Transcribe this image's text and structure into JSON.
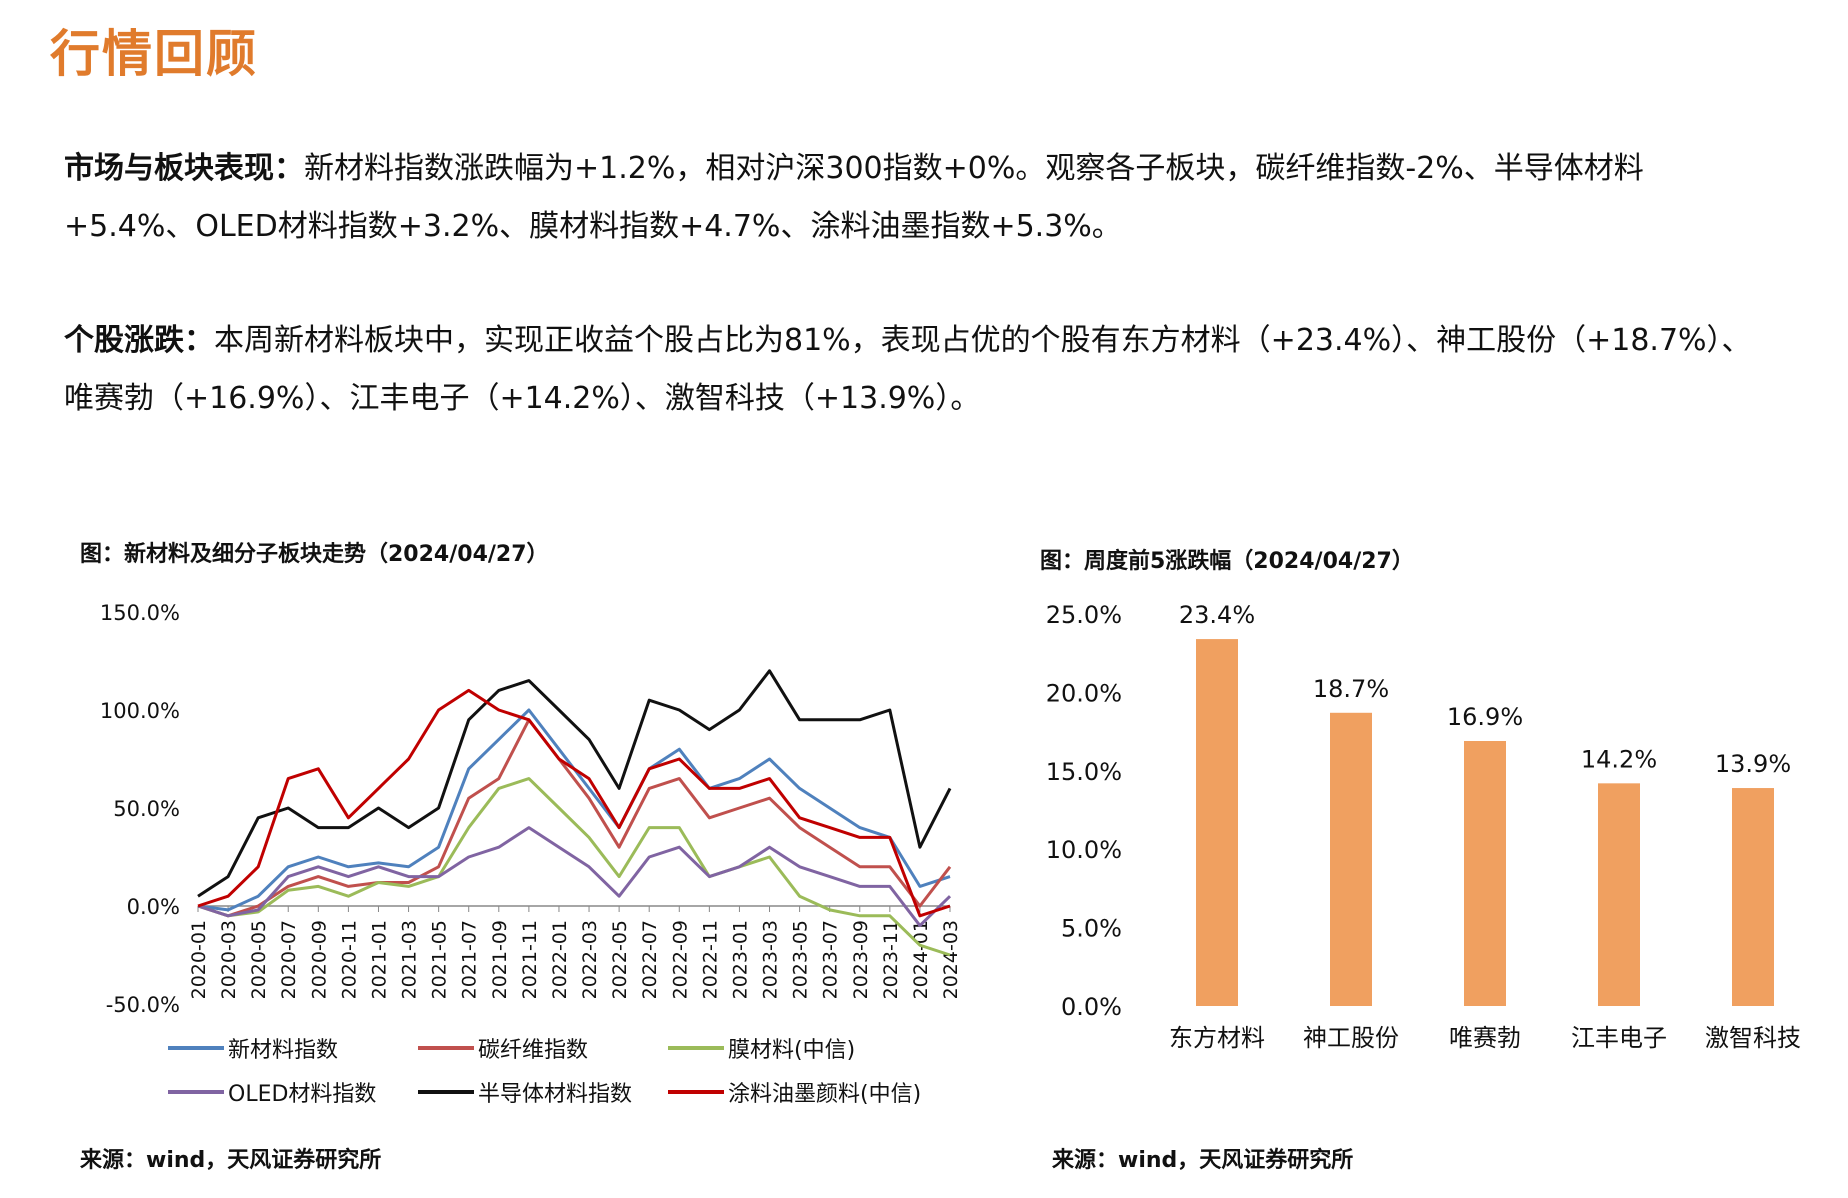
{
  "header": {
    "title": "行情回顾"
  },
  "paragraphs": {
    "p1_lead": "市场与板块表现：",
    "p1_text": "新材料指数涨跌幅为+1.2%，相对沪深300指数+0%。观察各子板块，碳纤维指数-2%、半导体材料+5.4%、OLED材料指数+3.2%、膜材料指数+4.7%、涂料油墨指数+5.3%。",
    "p2_lead": "个股涨跌：",
    "p2_text": "本周新材料板块中，实现正收益个股占比为81%，表现占优的个股有东方材料（+23.4%）、神工股份（+18.7%）、唯赛勃（+16.9%）、江丰电子（+14.2%）、激智科技（+13.9%）。"
  },
  "captions": {
    "line_chart": "图：新材料及细分子板块走势（2024/04/27）",
    "bar_chart": "图：周度前5涨跌幅（2024/04/27）",
    "source_left": "来源：wind，天风证券研究所",
    "source_right": "来源：wind，天风证券研究所"
  },
  "chart_data": [
    {
      "type": "line",
      "title": "",
      "x": [
        "2020-01",
        "2020-03",
        "2020-05",
        "2020-07",
        "2020-09",
        "2020-11",
        "2021-01",
        "2021-03",
        "2021-05",
        "2021-07",
        "2021-09",
        "2021-11",
        "2022-01",
        "2022-03",
        "2022-05",
        "2022-07",
        "2022-09",
        "2022-11",
        "2023-01",
        "2023-03",
        "2023-05",
        "2023-07",
        "2023-09",
        "2023-11",
        "2024-01",
        "2024-03"
      ],
      "ylim": [
        -50,
        150
      ],
      "yticks": [
        "150.0%",
        "100.0%",
        "50.0%",
        "0.0%",
        "-50.0%"
      ],
      "ytick_values": [
        150,
        100,
        50,
        0,
        -50
      ],
      "series": [
        {
          "name": "新材料指数",
          "color": "#4F81BD",
          "values": [
            0,
            -2,
            5,
            20,
            25,
            20,
            22,
            20,
            30,
            70,
            85,
            100,
            80,
            60,
            40,
            70,
            80,
            60,
            65,
            75,
            60,
            50,
            40,
            35,
            10,
            15
          ]
        },
        {
          "name": "碳纤维指数",
          "color": "#C0504D",
          "values": [
            0,
            -5,
            0,
            10,
            15,
            10,
            12,
            12,
            20,
            55,
            65,
            95,
            75,
            55,
            30,
            60,
            65,
            45,
            50,
            55,
            40,
            30,
            20,
            20,
            0,
            20
          ]
        },
        {
          "name": "膜材料(中信)",
          "color": "#9BBB59",
          "values": [
            0,
            -5,
            -3,
            8,
            10,
            5,
            12,
            10,
            15,
            40,
            60,
            65,
            50,
            35,
            15,
            40,
            40,
            15,
            20,
            25,
            5,
            -2,
            -5,
            -5,
            -20,
            -25
          ]
        },
        {
          "name": "OLED材料指数",
          "color": "#8064A2",
          "values": [
            0,
            -5,
            -2,
            15,
            20,
            15,
            20,
            15,
            15,
            25,
            30,
            40,
            30,
            20,
            5,
            25,
            30,
            15,
            20,
            30,
            20,
            15,
            10,
            10,
            -10,
            5
          ]
        },
        {
          "name": "半导体材料指数",
          "color": "#111111",
          "values": [
            5,
            15,
            45,
            50,
            40,
            40,
            50,
            40,
            50,
            95,
            110,
            115,
            100,
            85,
            60,
            105,
            100,
            90,
            100,
            120,
            95,
            95,
            95,
            100,
            30,
            60
          ]
        },
        {
          "name": "涂料油墨颜料(中信)",
          "color": "#C00000",
          "values": [
            0,
            5,
            20,
            65,
            70,
            45,
            60,
            75,
            100,
            110,
            100,
            95,
            75,
            65,
            40,
            70,
            75,
            60,
            60,
            65,
            45,
            40,
            35,
            35,
            -5,
            0
          ]
        }
      ]
    },
    {
      "type": "bar",
      "title": "",
      "categories": [
        "东方材料",
        "神工股份",
        "唯赛勃",
        "江丰电子",
        "激智科技"
      ],
      "values": [
        23.4,
        18.7,
        16.9,
        14.2,
        13.9
      ],
      "data_labels": [
        "23.4%",
        "18.7%",
        "16.9%",
        "14.2%",
        "13.9%"
      ],
      "ylim": [
        0,
        25
      ],
      "yticks": [
        "25.0%",
        "20.0%",
        "15.0%",
        "10.0%",
        "5.0%",
        "0.0%"
      ],
      "ytick_values": [
        25,
        20,
        15,
        10,
        5,
        0
      ],
      "color": "#F0A060"
    }
  ]
}
